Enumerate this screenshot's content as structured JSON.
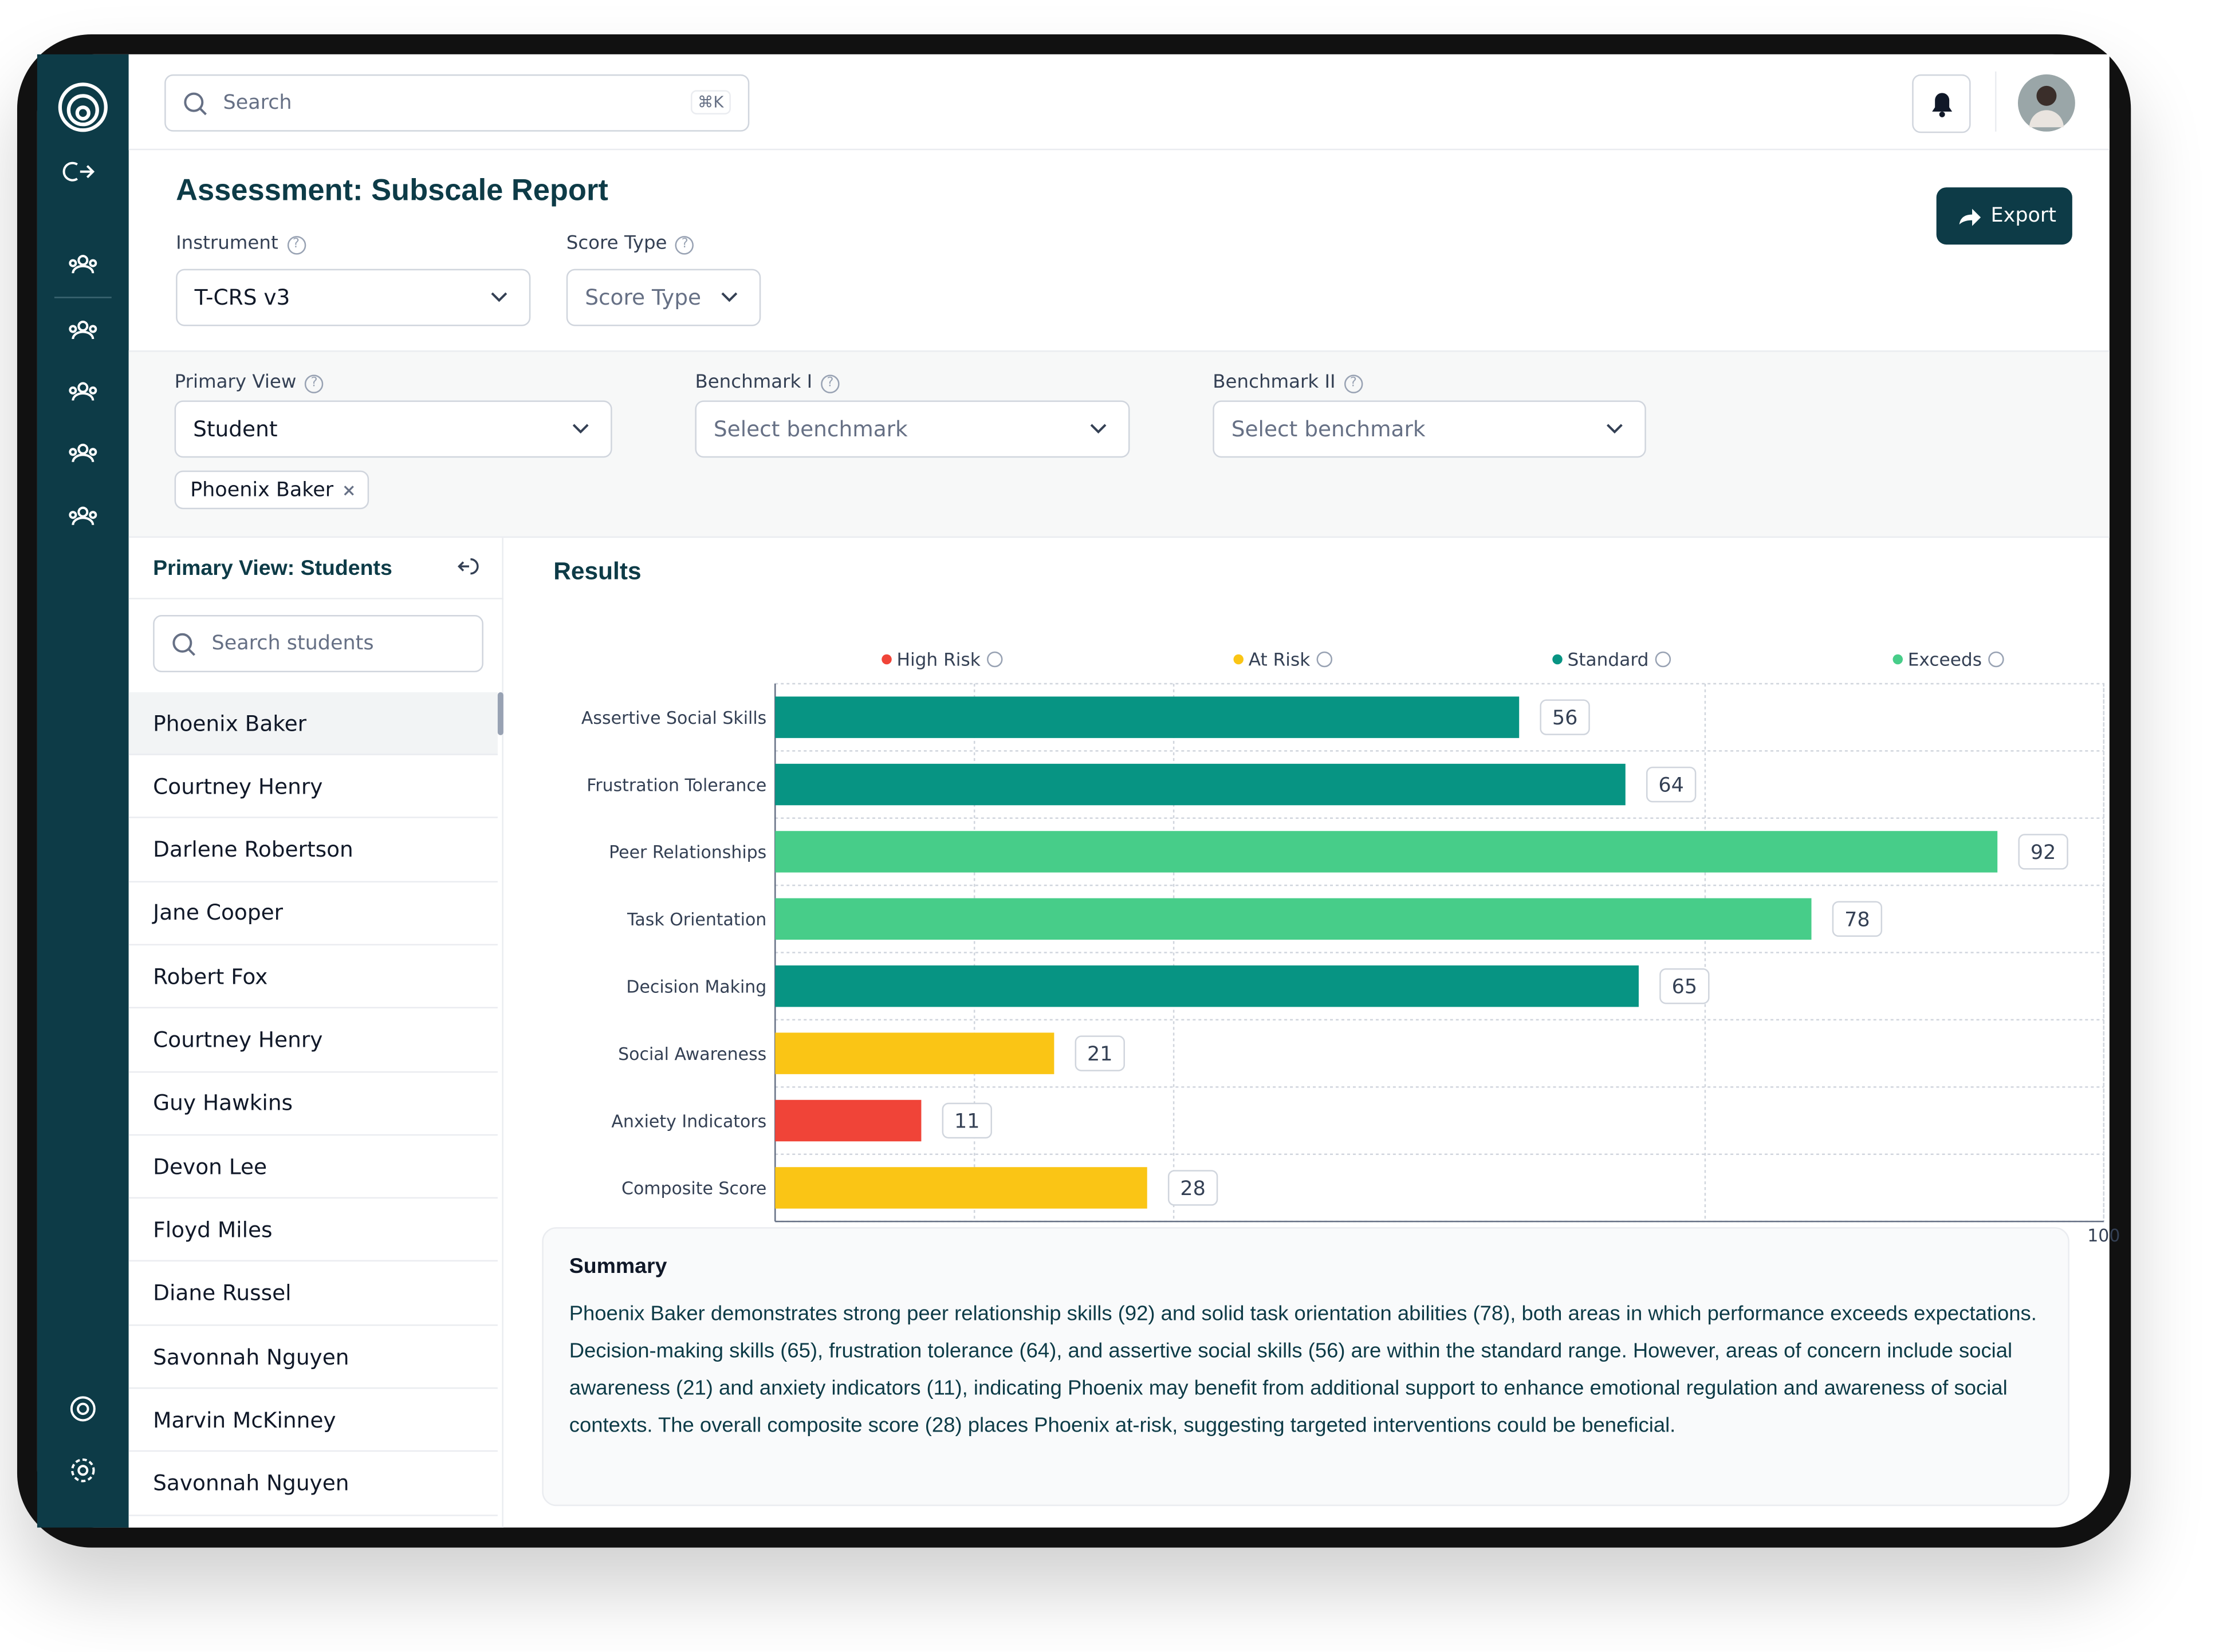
{
  "search": {
    "placeholder": "Search",
    "shortcut": "⌘K"
  },
  "header": {
    "title": "Assessment: Subscale Report",
    "export": "Export"
  },
  "filters": {
    "instrument": {
      "label": "Instrument",
      "value": "T-CRS v3"
    },
    "score_type": {
      "label": "Score Type",
      "placeholder": "Score Type"
    },
    "primary_view": {
      "label": "Primary View",
      "value": "Student"
    },
    "benchmark_1": {
      "label": "Benchmark I",
      "placeholder": "Select benchmark"
    },
    "benchmark_2": {
      "label": "Benchmark II",
      "placeholder": "Select benchmark"
    },
    "chip": "Phoenix Baker"
  },
  "students": {
    "title": "Primary View: Students",
    "search_placeholder": "Search students",
    "items": [
      "Phoenix Baker",
      "Courtney Henry",
      "Darlene Robertson",
      "Jane Cooper",
      "Robert Fox",
      "Courtney Henry",
      "Guy Hawkins",
      "Devon Lee",
      "Floyd Miles",
      "Diane Russel",
      "Savonnah Nguyen",
      "Marvin McKinney",
      "Savonnah Nguyen"
    ],
    "selected": 0
  },
  "chart_data": {
    "type": "bar",
    "orientation": "horizontal",
    "title": "Results",
    "legend": [
      {
        "name": "High Risk",
        "color": "#f04438"
      },
      {
        "name": "At Risk",
        "color": "#fac515"
      },
      {
        "name": "Standard",
        "color": "#079483"
      },
      {
        "name": "Exceeds",
        "color": "#47cd89"
      }
    ],
    "categories": [
      "Assertive Social Skills",
      "Frustration Tolerance",
      "Peer Relationships",
      "Task Orientation",
      "Decision Making",
      "Social Awareness",
      "Anxiety Indicators",
      "Composite Score"
    ],
    "values": [
      56,
      64,
      92,
      78,
      65,
      21,
      11,
      28
    ],
    "colors": [
      "#079483",
      "#079483",
      "#47cd89",
      "#47cd89",
      "#079483",
      "#fac515",
      "#f04438",
      "#fac515"
    ],
    "xlim": [
      0,
      100
    ],
    "xticks": [
      0,
      15,
      30,
      70,
      100
    ],
    "grid": true
  },
  "summary": {
    "title": "Summary",
    "text": "Phoenix Baker demonstrates strong peer relationship skills (92) and solid task orientation abilities (78), both areas in which performance exceeds expectations. Decision-making skills (65), frustration tolerance (64), and assertive social skills (56) are within the standard range. However, areas of concern include social awareness (21) and anxiety indicators (11), indicating Phoenix may benefit from additional support to enhance emotional regulation and awareness of social contexts. The overall composite score (28) places Phoenix at-risk, suggesting targeted interventions could be beneficial."
  }
}
